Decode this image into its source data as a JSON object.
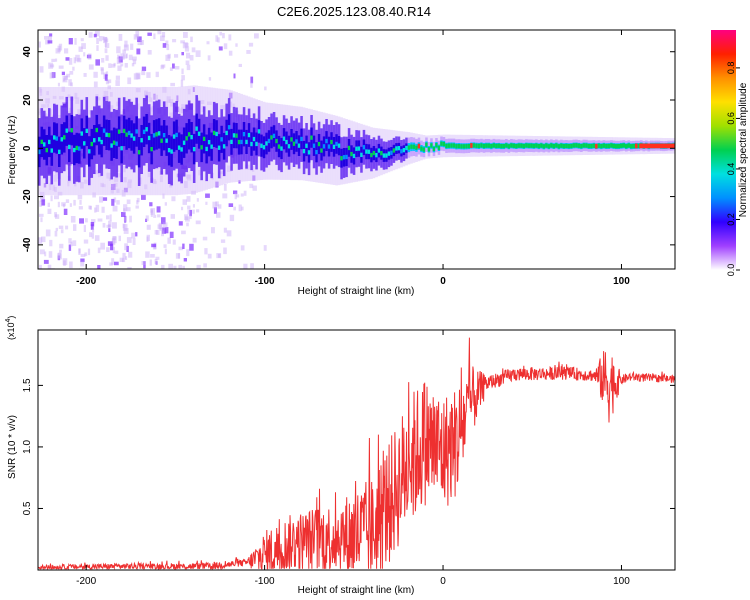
{
  "page": {
    "title": "C2E6.2025.123.08.40.R14"
  },
  "chart_data": [
    {
      "type": "heatmap",
      "title": "",
      "xlabel": "Height of straight line (km)",
      "ylabel": "Frequency (Hz)",
      "xlim": [
        -227,
        130
      ],
      "ylim": [
        -50,
        49
      ],
      "xticks": [
        -200,
        -100,
        0,
        100
      ],
      "yticks": [
        -40,
        -20,
        0,
        20,
        40
      ],
      "colorbar": {
        "label": "Normalized spectral amplitude",
        "range": [
          0.0,
          0.95
        ],
        "ticks": [
          0.0,
          0.2,
          0.4,
          0.6,
          0.8
        ],
        "colors": [
          "#ffffff",
          "#a040ff",
          "#3000ff",
          "#0090ff",
          "#00e0e0",
          "#00d050",
          "#a0e000",
          "#ffe000",
          "#ff9000",
          "#ff2000",
          "#ff0080"
        ]
      },
      "band_center": [
        {
          "x": -227,
          "y": 3
        },
        {
          "x": -150,
          "y": 3
        },
        {
          "x": -120,
          "y": 5
        },
        {
          "x": -100,
          "y": 3
        },
        {
          "x": -80,
          "y": 2
        },
        {
          "x": -60,
          "y": -1
        },
        {
          "x": -40,
          "y": -2
        },
        {
          "x": -20,
          "y": 0
        },
        {
          "x": 0,
          "y": 1
        },
        {
          "x": 50,
          "y": 1
        },
        {
          "x": 130,
          "y": 1
        }
      ],
      "band_halfwidth": [
        {
          "x": -227,
          "y": 14
        },
        {
          "x": -140,
          "y": 14
        },
        {
          "x": -100,
          "y": 10
        },
        {
          "x": -60,
          "y": 9
        },
        {
          "x": -35,
          "y": 6
        },
        {
          "x": -10,
          "y": 3
        },
        {
          "x": 130,
          "y": 2
        }
      ],
      "scatter_noise": {
        "x_range": [
          -227,
          -120
        ],
        "y_range": [
          -50,
          49
        ]
      }
    },
    {
      "type": "line",
      "title": "",
      "xlabel": "Height of straight line (km)",
      "ylabel": "SNR (10 * v/v)",
      "ylabel_multiplier": "(x10",
      "ylabel_multiplier_exp": "4",
      "ylabel_multiplier_close": ")",
      "xlim": [
        -227,
        130
      ],
      "ylim": [
        0,
        1.95
      ],
      "xticks": [
        -200,
        -100,
        0,
        100
      ],
      "yticks": [
        0.5,
        1.0,
        1.5
      ],
      "ytick_labels": [
        "0.5",
        "1.0",
        "1.5"
      ],
      "series": [
        {
          "color": "#ee3030",
          "values": [
            {
              "x": -227,
              "y": 0.02
            },
            {
              "x": -180,
              "y": 0.03
            },
            {
              "x": -130,
              "y": 0.03
            },
            {
              "x": -110,
              "y": 0.06
            },
            {
              "x": -100,
              "y": 0.12
            },
            {
              "x": -85,
              "y": 0.22
            },
            {
              "x": -70,
              "y": 0.25
            },
            {
              "x": -55,
              "y": 0.27
            },
            {
              "x": -40,
              "y": 0.3
            },
            {
              "x": -30,
              "y": 0.55
            },
            {
              "x": -20,
              "y": 0.85
            },
            {
              "x": -10,
              "y": 1.05
            },
            {
              "x": 0,
              "y": 0.95
            },
            {
              "x": 8,
              "y": 1.05
            },
            {
              "x": 15,
              "y": 1.35
            },
            {
              "x": 25,
              "y": 1.52
            },
            {
              "x": 40,
              "y": 1.59
            },
            {
              "x": 70,
              "y": 1.6
            },
            {
              "x": 85,
              "y": 1.58
            },
            {
              "x": 95,
              "y": 1.52
            },
            {
              "x": 105,
              "y": 1.57
            },
            {
              "x": 130,
              "y": 1.55
            }
          ],
          "noise_amplitude": [
            {
              "x": -227,
              "y": 0.02
            },
            {
              "x": -110,
              "y": 0.03
            },
            {
              "x": -100,
              "y": 0.2
            },
            {
              "x": -60,
              "y": 0.3
            },
            {
              "x": -35,
              "y": 0.5
            },
            {
              "x": -15,
              "y": 0.55
            },
            {
              "x": 10,
              "y": 0.45
            },
            {
              "x": 25,
              "y": 0.06
            },
            {
              "x": 85,
              "y": 0.05
            },
            {
              "x": 93,
              "y": 0.35
            },
            {
              "x": 100,
              "y": 0.04
            },
            {
              "x": 130,
              "y": 0.03
            }
          ]
        }
      ]
    }
  ]
}
